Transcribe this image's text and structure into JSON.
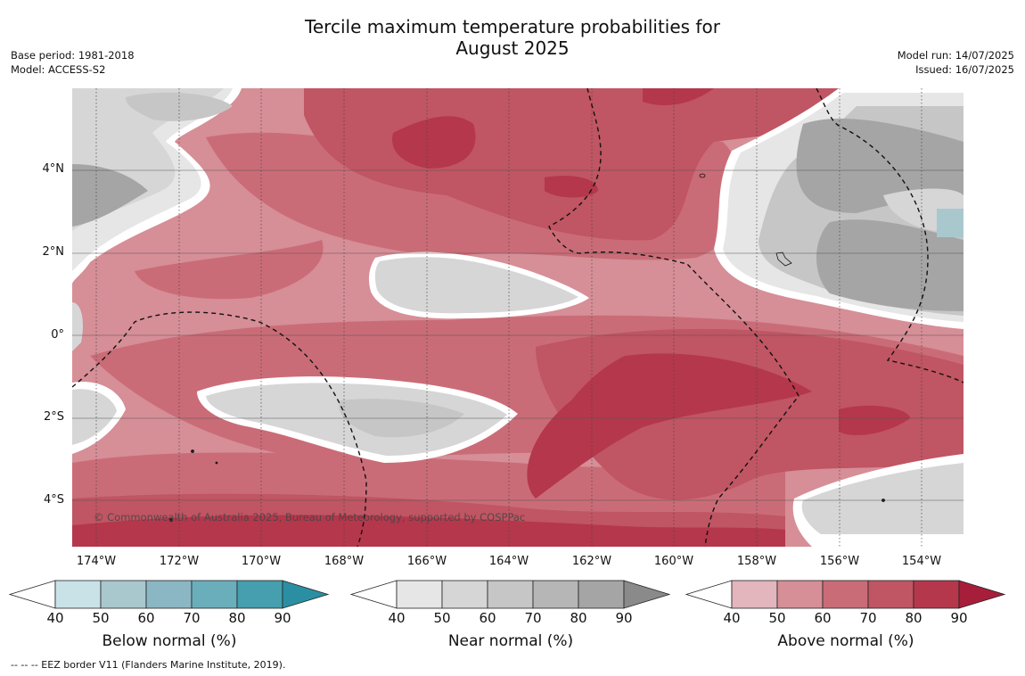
{
  "title_line1": "Tercile maximum temperature probabilities for",
  "title_line2": "August 2025",
  "base_period": "Base period: 1981-2018",
  "model": "Model: ACCESS-S2",
  "model_run": "Model run: 14/07/2025",
  "issued": "Issued: 16/07/2025",
  "copyright": "© Commonwealth of Australia 2025, Bureau of Meteorology, supported by COSPPac",
  "latitude_labels": [
    "4°N",
    "2°N",
    "0°",
    "2°S",
    "4°S"
  ],
  "longitude_labels": [
    "174°W",
    "172°W",
    "170°W",
    "168°W",
    "166°W",
    "164°W",
    "162°W",
    "160°W",
    "158°W",
    "156°W",
    "154°W"
  ],
  "colorbars": [
    {
      "title": "Below normal (%)",
      "ticks": [
        "40",
        "50",
        "60",
        "70",
        "80",
        "90"
      ],
      "colors": [
        "#c8e2e8",
        "#a8c8ce",
        "#8ab7c3",
        "#6aaebb",
        "#459fae",
        "#2b8fa3"
      ]
    },
    {
      "title": "Near normal (%)",
      "ticks": [
        "40",
        "50",
        "60",
        "70",
        "80",
        "90"
      ],
      "colors": [
        "#e6e6e6",
        "#d6d6d6",
        "#c6c6c6",
        "#b6b6b6",
        "#a5a5a5",
        "#8a8a8a"
      ]
    },
    {
      "title": "Above normal (%)",
      "ticks": [
        "40",
        "50",
        "60",
        "70",
        "80",
        "90"
      ],
      "colors": [
        "#e3b5bc",
        "#d68e97",
        "#ca6c77",
        "#c05563",
        "#b5374c",
        "#a71e3b"
      ]
    }
  ],
  "footer": "--  --  -- EEZ border V11 (Flanders Marine Institute, 2019)."
}
